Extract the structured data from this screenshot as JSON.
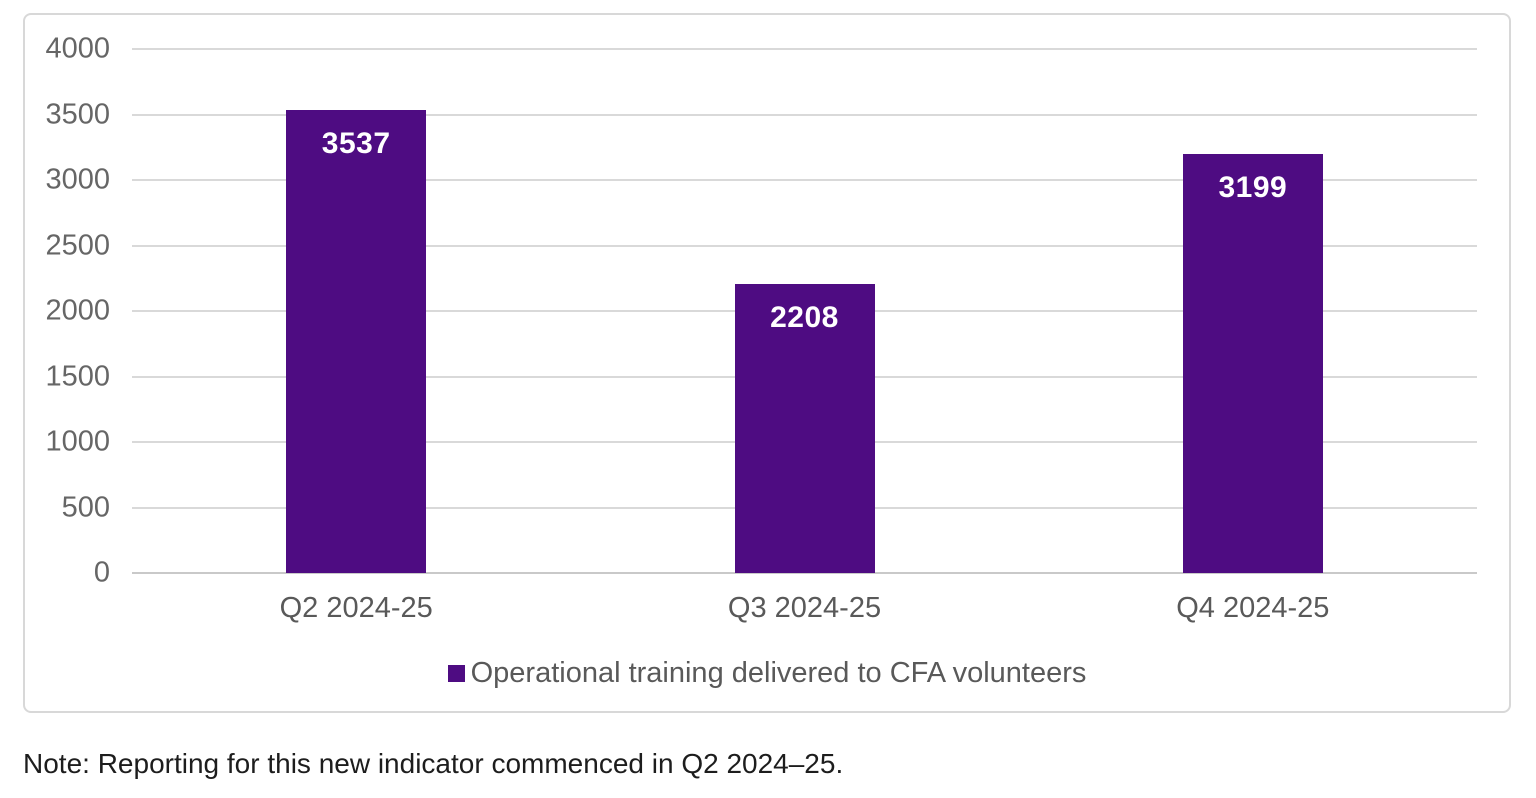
{
  "chart_data": {
    "type": "bar",
    "title": "",
    "categories": [
      "Q2 2024-25",
      "Q3 2024-25",
      "Q4 2024-25"
    ],
    "values": [
      3537,
      2208,
      3199
    ],
    "series_name": "Operational training delivered to CFA volunteers",
    "xlabel": "",
    "ylabel": "",
    "ylim": [
      0,
      4000
    ],
    "yticks": [
      0,
      500,
      1000,
      1500,
      2000,
      2500,
      3000,
      3500,
      4000
    ],
    "grid": true,
    "legend_position": "bottom",
    "value_label_position": "inside-top",
    "bar_color": "#4e0c82",
    "value_label_color": "#ffffff",
    "gridline_color": "#d9d9d9",
    "axis_label_color": "#666666"
  },
  "note": "Note: Reporting for this new indicator commenced in Q2 2024–25."
}
